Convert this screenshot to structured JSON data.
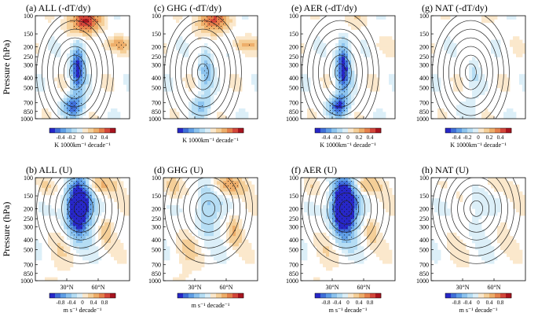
{
  "chart_data": {
    "type": "heatmap",
    "ylabel": "Pressure (hPa)",
    "pressure_ticks": [
      100,
      150,
      200,
      250,
      300,
      400,
      500,
      700,
      850,
      1000
    ],
    "lat_ticks": [
      {
        "value": 30,
        "label": "30°N"
      },
      {
        "value": 60,
        "label": "60°N"
      }
    ],
    "xlim": [
      0,
      90
    ],
    "ylim": [
      1000,
      100
    ],
    "y_scale": "log",
    "colors": {
      "neg": [
        "#2727c8",
        "#3f6fd8",
        "#5f9ee6",
        "#8cc3ee",
        "#b5ddf4",
        "#dceff8"
      ],
      "pos": [
        "#fbe8cc",
        "#f5cf98",
        "#eeae6a",
        "#e5804b",
        "#d4473a",
        "#a8141f"
      ]
    },
    "panels": [
      {
        "label": "(a) ALL (-dT/dy)",
        "row": 0,
        "col": 0,
        "kind": "dtdy",
        "hot": 1.0,
        "cold": 1.0,
        "colorbar_ticks": [
          "-0.4",
          "-0.2",
          "0",
          "0.2",
          "0.4"
        ],
        "units": "K 1000km⁻¹ decade⁻¹"
      },
      {
        "label": "(c) GHG (-dT/dy)",
        "row": 0,
        "col": 1,
        "kind": "dtdy",
        "hot": 0.8,
        "cold": 0.45,
        "colorbar_ticks": [],
        "units": "K 1000km⁻¹ decade⁻¹"
      },
      {
        "label": "(e) AER (-dT/dy)",
        "row": 0,
        "col": 2,
        "kind": "dtdy",
        "hot": 0.15,
        "cold": 1.1,
        "colorbar_ticks": [
          "-0.4",
          "-0.2",
          "0",
          "0.2",
          "0.4"
        ],
        "units": "K 1000km⁻¹ decade⁻¹"
      },
      {
        "label": "(g) NAT (-dT/dy)",
        "row": 0,
        "col": 3,
        "kind": "dtdy",
        "hot": 0.05,
        "cold": 0.15,
        "colorbar_ticks": [
          "-0.4",
          "-0.2",
          "0",
          "0.2",
          "0.4"
        ],
        "units": "K 1000km⁻¹ decade⁻¹"
      },
      {
        "label": "(b) ALL (U)",
        "row": 1,
        "col": 0,
        "kind": "u",
        "cold": 1.0,
        "warm": 0.45,
        "colorbar_ticks": [
          "-0.8",
          "-0.4",
          "0",
          "0.4",
          "0.8"
        ],
        "units": "m s⁻¹ decade⁻¹"
      },
      {
        "label": "(d) GHG (U)",
        "row": 1,
        "col": 1,
        "kind": "u",
        "cold": 0.25,
        "warm": 0.6,
        "colorbar_ticks": [],
        "units": "m s⁻¹ decade⁻¹"
      },
      {
        "label": "(f) AER (U)",
        "row": 1,
        "col": 2,
        "kind": "u",
        "cold": 1.15,
        "warm": 0.4,
        "colorbar_ticks": [
          "-0.8",
          "-0.4",
          "0",
          "0.4",
          "0.8"
        ],
        "units": "m s⁻¹ decade⁻¹"
      },
      {
        "label": "(h) NAT (U)",
        "row": 1,
        "col": 3,
        "kind": "u",
        "cold": 0.1,
        "warm": 0.2,
        "colorbar_ticks": [
          "-0.8",
          "-0.4",
          "0",
          "0.4",
          "0.8"
        ],
        "units": "m s⁻¹ decade⁻¹"
      }
    ]
  }
}
